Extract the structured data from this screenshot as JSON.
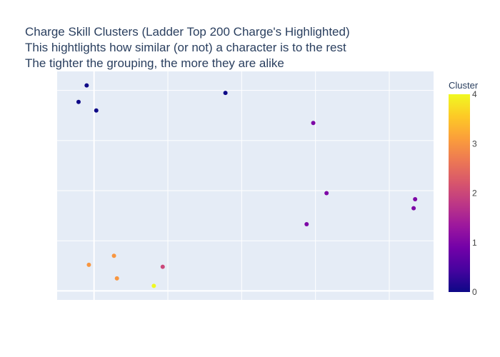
{
  "chart_data": {
    "type": "scatter",
    "title": [
      "Charge Skill Clusters (Ladder Top 200 Charge's Highlighted)",
      "This hightlights how similar (or not) a character is to the rest",
      "The tighter the grouping, the more they are alike"
    ],
    "xlabel": "",
    "ylabel": "",
    "xlim": [
      -0.5,
      4.6
    ],
    "ylim": [
      -0.18,
      4.38
    ],
    "grid": true,
    "colorbar": {
      "title": "Cluster",
      "range": [
        0,
        4
      ],
      "ticks": [
        "0",
        "1",
        "2",
        "3",
        "4"
      ],
      "colorscale": [
        "#0d0887",
        "#46039f",
        "#7201a8",
        "#9c179e",
        "#bd3786",
        "#d8576b",
        "#ed7953",
        "#fb9f3a",
        "#fdca26",
        "#f0f921"
      ]
    },
    "points": [
      {
        "x": -0.1,
        "y": 4.1,
        "cluster": 0
      },
      {
        "x": -0.21,
        "y": 3.77,
        "cluster": 0
      },
      {
        "x": 0.03,
        "y": 3.6,
        "cluster": 0
      },
      {
        "x": 1.78,
        "y": 3.95,
        "cluster": 0
      },
      {
        "x": 2.97,
        "y": 3.35,
        "cluster": 1
      },
      {
        "x": 3.15,
        "y": 1.95,
        "cluster": 1
      },
      {
        "x": 2.88,
        "y": 1.33,
        "cluster": 1
      },
      {
        "x": 4.35,
        "y": 1.83,
        "cluster": 1
      },
      {
        "x": 4.33,
        "y": 1.65,
        "cluster": 1
      },
      {
        "x": 0.27,
        "y": 0.7,
        "cluster": 3
      },
      {
        "x": -0.07,
        "y": 0.52,
        "cluster": 3
      },
      {
        "x": 0.31,
        "y": 0.25,
        "cluster": 3
      },
      {
        "x": 0.93,
        "y": 0.48,
        "cluster": 2
      },
      {
        "x": 0.81,
        "y": 0.1,
        "cluster": 4
      }
    ]
  }
}
